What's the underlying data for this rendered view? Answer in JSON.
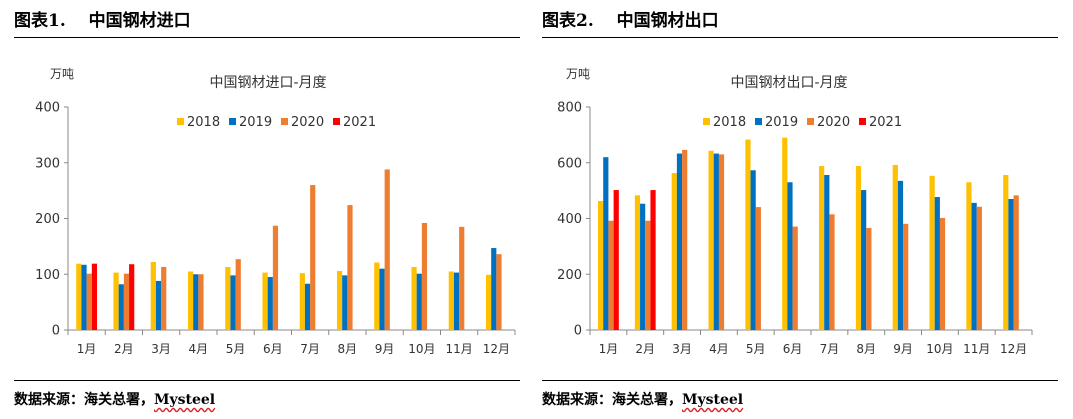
{
  "figures": [
    {
      "title": "图表1.　 中国钢材进口",
      "source_prefix": "数据来源：海关总署，",
      "source_brand": "Mysteel"
    },
    {
      "title": "图表2.　 中国钢材出口",
      "source_prefix": "数据来源：海关总署，",
      "source_brand": "Mysteel"
    }
  ],
  "colors": {
    "2018": "#FFC000",
    "2019": "#0070C0",
    "2020": "#ED7D31",
    "2021": "#FF0000"
  },
  "chart_data": [
    {
      "type": "bar",
      "title": "中国钢材进口-月度",
      "unit": "万吨",
      "categories": [
        "1月",
        "2月",
        "3月",
        "4月",
        "5月",
        "6月",
        "7月",
        "8月",
        "9月",
        "10月",
        "11月",
        "12月"
      ],
      "ylim": [
        0,
        400
      ],
      "yticks": [
        0,
        100,
        200,
        300,
        400
      ],
      "legend_position": "top",
      "series": [
        {
          "name": "2018",
          "values": [
            119,
            103,
            122,
            105,
            113,
            103,
            102,
            106,
            121,
            113,
            105,
            99
          ]
        },
        {
          "name": "2019",
          "values": [
            117,
            82,
            88,
            100,
            98,
            95,
            83,
            98,
            110,
            101,
            103,
            147
          ]
        },
        {
          "name": "2020",
          "values": [
            101,
            101,
            113,
            100,
            127,
            187,
            260,
            224,
            288,
            192,
            185,
            136
          ]
        },
        {
          "name": "2021",
          "values": [
            119,
            118,
            null,
            null,
            null,
            null,
            null,
            null,
            null,
            null,
            null,
            null
          ]
        }
      ]
    },
    {
      "type": "bar",
      "title": "中国钢材出口-月度",
      "unit": "万吨",
      "categories": [
        "1月",
        "2月",
        "3月",
        "4月",
        "5月",
        "6月",
        "7月",
        "8月",
        "9月",
        "10月",
        "11月",
        "12月"
      ],
      "ylim": [
        0,
        800
      ],
      "yticks": [
        0,
        200,
        400,
        600,
        800
      ],
      "legend_position": "top",
      "series": [
        {
          "name": "2018",
          "values": [
            463,
            483,
            563,
            643,
            683,
            690,
            588,
            588,
            592,
            553,
            530,
            556
          ]
        },
        {
          "name": "2019",
          "values": [
            620,
            453,
            633,
            633,
            573,
            530,
            556,
            502,
            535,
            477,
            456,
            470
          ]
        },
        {
          "name": "2020",
          "values": [
            392,
            392,
            646,
            630,
            441,
            371,
            415,
            366,
            381,
            402,
            442,
            483
          ]
        },
        {
          "name": "2021",
          "values": [
            502,
            502,
            null,
            null,
            null,
            null,
            null,
            null,
            null,
            null,
            null,
            null
          ]
        }
      ]
    }
  ]
}
